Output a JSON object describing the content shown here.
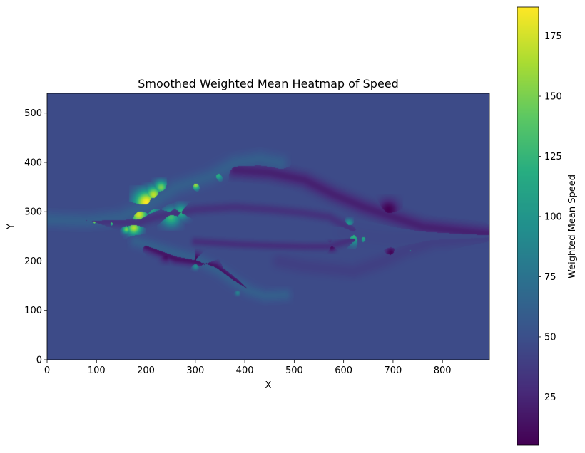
{
  "chart_data": {
    "type": "heatmap",
    "title": "Smoothed Weighted Mean Heatmap of Speed",
    "xlabel": "X",
    "ylabel": "Y",
    "xlim": [
      0,
      895
    ],
    "ylim": [
      0,
      540
    ],
    "x_ticks": [
      0,
      100,
      200,
      300,
      400,
      500,
      600,
      700,
      800
    ],
    "y_ticks": [
      0,
      100,
      200,
      300,
      400,
      500
    ],
    "colorbar": {
      "label": "Weighted Mean Speed",
      "range": [
        5,
        187
      ],
      "ticks": [
        25,
        50,
        75,
        100,
        125,
        150,
        175
      ],
      "colormap": "viridis"
    },
    "background_value": 47,
    "path_bands": [
      {
        "points": [
          [
            0,
            285
          ],
          [
            80,
            282
          ],
          [
            150,
            290
          ],
          [
            200,
            312
          ],
          [
            260,
            350
          ],
          [
            330,
            372
          ],
          [
            380,
            400
          ],
          [
            430,
            408
          ],
          [
            470,
            400
          ]
        ],
        "value": 60,
        "width": 22
      },
      {
        "points": [
          [
            0,
            285
          ],
          [
            100,
            282
          ],
          [
            180,
            278
          ],
          [
            220,
            290
          ],
          [
            300,
            305
          ],
          [
            380,
            310
          ],
          [
            450,
            305
          ],
          [
            520,
            298
          ],
          [
            570,
            290
          ],
          [
            620,
            262
          ]
        ],
        "value": 32,
        "width": 14
      },
      {
        "points": [
          [
            180,
            240
          ],
          [
            240,
            222
          ],
          [
            300,
            205
          ],
          [
            350,
            180
          ],
          [
            380,
            158
          ],
          [
            410,
            140
          ],
          [
            440,
            130
          ],
          [
            480,
            132
          ]
        ],
        "value": 60,
        "width": 18
      },
      {
        "points": [
          [
            200,
            230
          ],
          [
            260,
            205
          ],
          [
            300,
            200
          ],
          [
            340,
            190
          ],
          [
            380,
            160
          ],
          [
            410,
            140
          ]
        ],
        "value": 15,
        "width": 14
      },
      {
        "points": [
          [
            300,
            240
          ],
          [
            380,
            235
          ],
          [
            450,
            232
          ],
          [
            520,
            230
          ],
          [
            570,
            230
          ],
          [
            620,
            245
          ]
        ],
        "value": 30,
        "width": 12
      },
      {
        "points": [
          [
            470,
            200
          ],
          [
            520,
            190
          ],
          [
            570,
            185
          ],
          [
            620,
            180
          ],
          [
            680,
            200
          ],
          [
            720,
            220
          ],
          [
            780,
            240
          ],
          [
            895,
            248
          ]
        ],
        "value": 40,
        "width": 22
      },
      {
        "points": [
          [
            380,
            385
          ],
          [
            450,
            380
          ],
          [
            520,
            365
          ],
          [
            580,
            335
          ],
          [
            640,
            310
          ],
          [
            700,
            290
          ],
          [
            760,
            270
          ],
          [
            895,
            255
          ]
        ],
        "value": 22,
        "width": 22
      },
      {
        "points": [
          [
            600,
            260
          ],
          [
            650,
            250
          ],
          [
            700,
            245
          ],
          [
            760,
            248
          ],
          [
            830,
            248
          ],
          [
            895,
            250
          ]
        ],
        "value": 45,
        "width": 28
      }
    ],
    "hotspots": [
      {
        "x": 200,
        "y": 320,
        "value": 187,
        "radius": 28
      },
      {
        "x": 185,
        "y": 295,
        "value": 175,
        "radius": 22
      },
      {
        "x": 215,
        "y": 335,
        "value": 170,
        "radius": 20
      },
      {
        "x": 175,
        "y": 268,
        "value": 165,
        "radius": 18
      },
      {
        "x": 230,
        "y": 350,
        "value": 150,
        "radius": 16
      },
      {
        "x": 250,
        "y": 290,
        "value": 130,
        "radius": 22
      },
      {
        "x": 270,
        "y": 300,
        "value": 120,
        "radius": 18
      },
      {
        "x": 300,
        "y": 355,
        "value": 160,
        "radius": 12
      },
      {
        "x": 345,
        "y": 375,
        "value": 120,
        "radius": 14
      },
      {
        "x": 95,
        "y": 280,
        "value": 150,
        "radius": 8
      },
      {
        "x": 130,
        "y": 278,
        "value": 130,
        "radius": 8
      },
      {
        "x": 160,
        "y": 265,
        "value": 150,
        "radius": 10
      },
      {
        "x": 620,
        "y": 250,
        "value": 120,
        "radius": 20
      },
      {
        "x": 640,
        "y": 248,
        "value": 110,
        "radius": 16
      },
      {
        "x": 610,
        "y": 278,
        "value": 100,
        "radius": 10
      },
      {
        "x": 825,
        "y": 248,
        "value": 120,
        "radius": 8
      },
      {
        "x": 735,
        "y": 222,
        "value": 90,
        "radius": 6
      },
      {
        "x": 300,
        "y": 190,
        "value": 95,
        "radius": 8
      },
      {
        "x": 385,
        "y": 136,
        "value": 90,
        "radius": 6
      },
      {
        "x": 690,
        "y": 305,
        "value": 5,
        "radius": 24
      },
      {
        "x": 695,
        "y": 218,
        "value": 8,
        "radius": 14
      },
      {
        "x": 300,
        "y": 205,
        "value": 10,
        "radius": 16
      },
      {
        "x": 240,
        "y": 210,
        "value": 12,
        "radius": 14
      },
      {
        "x": 575,
        "y": 230,
        "value": 10,
        "radius": 12
      }
    ]
  }
}
